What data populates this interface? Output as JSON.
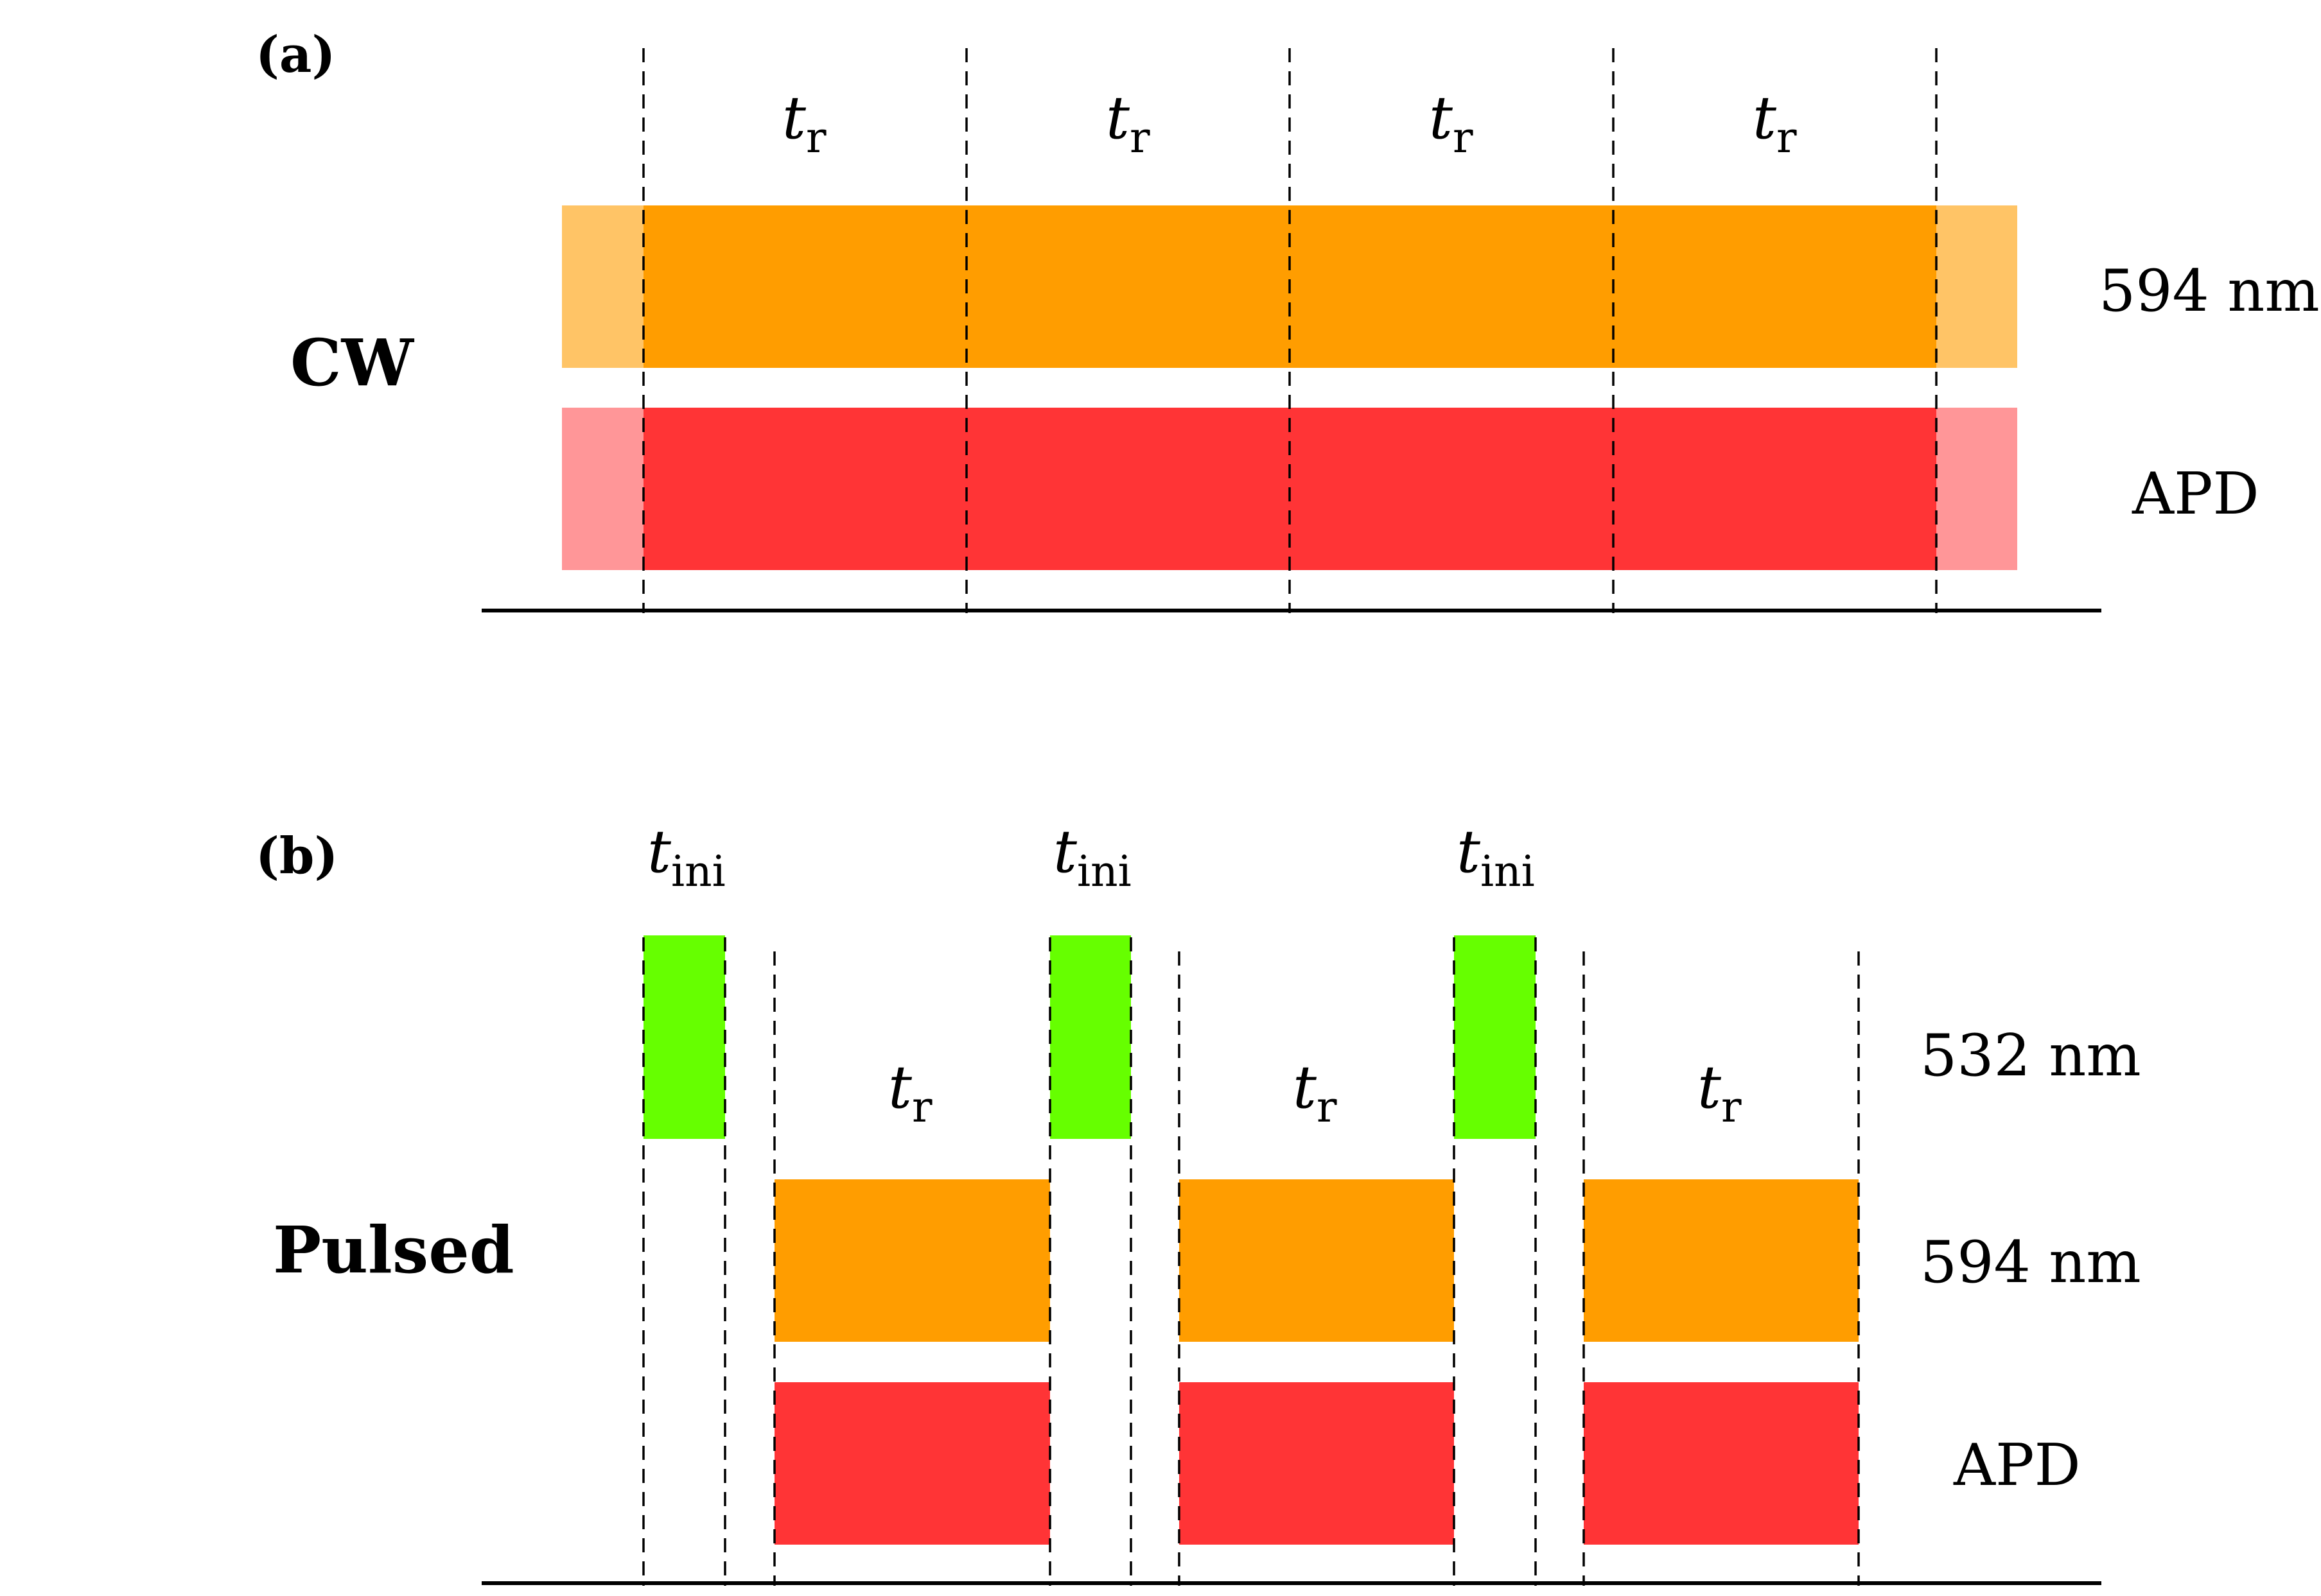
{
  "panels": [
    {
      "id": "a",
      "panel_label": "(a)",
      "mode_label": "CW",
      "interval_labels": [
        {
          "symbol": "t",
          "subscript": "r"
        },
        {
          "symbol": "t",
          "subscript": "r"
        },
        {
          "symbol": "t",
          "subscript": "r"
        },
        {
          "symbol": "t",
          "subscript": "r"
        }
      ],
      "tracks": [
        {
          "label": "594 nm",
          "color": "#FF9D00",
          "faded_color": "#FFC466"
        },
        {
          "label": "APD",
          "color": "#FF3436",
          "faded_color": "#FF9698"
        }
      ]
    },
    {
      "id": "b",
      "panel_label": "(b)",
      "mode_label": "Pulsed",
      "init_labels": [
        {
          "symbol": "t",
          "subscript": "ini"
        },
        {
          "symbol": "t",
          "subscript": "ini"
        },
        {
          "symbol": "t",
          "subscript": "ini"
        }
      ],
      "readout_labels": [
        {
          "symbol": "t",
          "subscript": "r"
        },
        {
          "symbol": "t",
          "subscript": "r"
        },
        {
          "symbol": "t",
          "subscript": "r"
        }
      ],
      "tracks": [
        {
          "label": "532 nm",
          "color": "#66FF00"
        },
        {
          "label": "594 nm",
          "color": "#FF9D00"
        },
        {
          "label": "APD",
          "color": "#FF3436"
        }
      ]
    }
  ]
}
